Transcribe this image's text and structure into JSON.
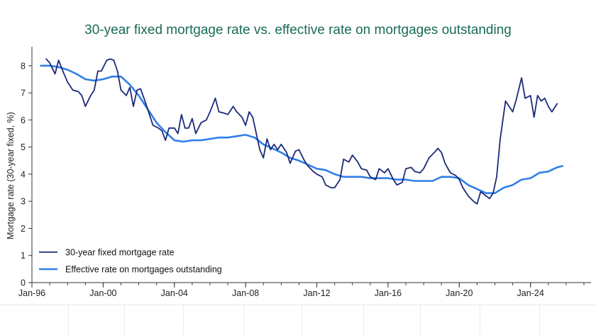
{
  "chart_data": {
    "type": "line",
    "title": "30-year fixed mortgage rate vs. effective rate on mortgages outstanding",
    "ylabel": "Mortgage rate (30-year fixed, %)",
    "xlabel": "",
    "ylim": [
      0,
      8.7
    ],
    "xlim": [
      1996.0,
      2027.4
    ],
    "y_ticks": [
      0,
      1,
      2,
      3,
      4,
      5,
      6,
      7,
      8
    ],
    "x_ticks": [
      {
        "label": "Jan-96",
        "value": 1996
      },
      {
        "label": "Jan-00",
        "value": 2000
      },
      {
        "label": "Jan-04",
        "value": 2004
      },
      {
        "label": "Jan-08",
        "value": 2008
      },
      {
        "label": "Jan-12",
        "value": 2012
      },
      {
        "label": "Jan-16",
        "value": 2016
      },
      {
        "label": "Jan-20",
        "value": 2020
      },
      {
        "label": "Jan-24",
        "value": 2024
      }
    ],
    "grid": false,
    "legend_position": "bottom-left",
    "series": [
      {
        "name": "30-year fixed mortgage rate",
        "color": "#1b2a78",
        "points": [
          [
            1996.8,
            8.25
          ],
          [
            1997.0,
            8.1
          ],
          [
            1997.3,
            7.7
          ],
          [
            1997.5,
            8.2
          ],
          [
            1997.8,
            7.7
          ],
          [
            1998.0,
            7.4
          ],
          [
            1998.3,
            7.1
          ],
          [
            1998.6,
            7.05
          ],
          [
            1998.8,
            6.9
          ],
          [
            1999.0,
            6.5
          ],
          [
            1999.3,
            6.9
          ],
          [
            1999.5,
            7.1
          ],
          [
            1999.7,
            7.8
          ],
          [
            1999.9,
            7.8
          ],
          [
            2000.2,
            8.2
          ],
          [
            2000.4,
            8.25
          ],
          [
            2000.6,
            8.2
          ],
          [
            2000.8,
            7.8
          ],
          [
            2001.0,
            7.1
          ],
          [
            2001.3,
            6.9
          ],
          [
            2001.5,
            7.2
          ],
          [
            2001.7,
            6.5
          ],
          [
            2001.9,
            7.1
          ],
          [
            2002.1,
            7.15
          ],
          [
            2002.4,
            6.6
          ],
          [
            2002.6,
            6.2
          ],
          [
            2002.8,
            5.8
          ],
          [
            2003.1,
            5.7
          ],
          [
            2003.3,
            5.6
          ],
          [
            2003.5,
            5.25
          ],
          [
            2003.7,
            5.7
          ],
          [
            2004.0,
            5.7
          ],
          [
            2004.2,
            5.5
          ],
          [
            2004.4,
            6.2
          ],
          [
            2004.6,
            5.7
          ],
          [
            2004.8,
            5.7
          ],
          [
            2005.0,
            6.05
          ],
          [
            2005.2,
            5.5
          ],
          [
            2005.5,
            5.9
          ],
          [
            2005.8,
            6.0
          ],
          [
            2006.0,
            6.3
          ],
          [
            2006.3,
            6.8
          ],
          [
            2006.5,
            6.3
          ],
          [
            2006.8,
            6.25
          ],
          [
            2007.0,
            6.2
          ],
          [
            2007.3,
            6.5
          ],
          [
            2007.5,
            6.3
          ],
          [
            2007.8,
            6.1
          ],
          [
            2008.0,
            5.8
          ],
          [
            2008.2,
            6.3
          ],
          [
            2008.4,
            6.1
          ],
          [
            2008.6,
            5.5
          ],
          [
            2008.8,
            4.9
          ],
          [
            2009.0,
            4.6
          ],
          [
            2009.2,
            5.3
          ],
          [
            2009.4,
            4.9
          ],
          [
            2009.6,
            5.1
          ],
          [
            2009.8,
            4.9
          ],
          [
            2010.0,
            5.1
          ],
          [
            2010.3,
            4.8
          ],
          [
            2010.5,
            4.4
          ],
          [
            2010.8,
            4.85
          ],
          [
            2011.0,
            4.9
          ],
          [
            2011.3,
            4.5
          ],
          [
            2011.5,
            4.3
          ],
          [
            2011.8,
            4.1
          ],
          [
            2012.0,
            4.0
          ],
          [
            2012.3,
            3.9
          ],
          [
            2012.5,
            3.6
          ],
          [
            2012.8,
            3.5
          ],
          [
            2013.0,
            3.5
          ],
          [
            2013.3,
            3.8
          ],
          [
            2013.5,
            4.55
          ],
          [
            2013.8,
            4.45
          ],
          [
            2014.0,
            4.7
          ],
          [
            2014.3,
            4.45
          ],
          [
            2014.5,
            4.2
          ],
          [
            2014.8,
            4.15
          ],
          [
            2015.0,
            3.9
          ],
          [
            2015.3,
            3.8
          ],
          [
            2015.5,
            4.2
          ],
          [
            2015.8,
            4.05
          ],
          [
            2016.0,
            4.2
          ],
          [
            2016.3,
            3.8
          ],
          [
            2016.5,
            3.6
          ],
          [
            2016.8,
            3.7
          ],
          [
            2017.0,
            4.2
          ],
          [
            2017.3,
            4.25
          ],
          [
            2017.5,
            4.1
          ],
          [
            2017.8,
            4.05
          ],
          [
            2018.0,
            4.2
          ],
          [
            2018.3,
            4.6
          ],
          [
            2018.6,
            4.8
          ],
          [
            2018.8,
            4.95
          ],
          [
            2019.0,
            4.8
          ],
          [
            2019.2,
            4.4
          ],
          [
            2019.5,
            4.05
          ],
          [
            2019.8,
            3.95
          ],
          [
            2020.0,
            3.8
          ],
          [
            2020.2,
            3.5
          ],
          [
            2020.5,
            3.2
          ],
          [
            2020.8,
            3.0
          ],
          [
            2021.0,
            2.9
          ],
          [
            2021.2,
            3.35
          ],
          [
            2021.5,
            3.2
          ],
          [
            2021.7,
            3.1
          ],
          [
            2021.9,
            3.3
          ],
          [
            2022.1,
            3.9
          ],
          [
            2022.3,
            5.3
          ],
          [
            2022.6,
            6.7
          ],
          [
            2022.8,
            6.5
          ],
          [
            2023.0,
            6.3
          ],
          [
            2023.2,
            6.75
          ],
          [
            2023.5,
            7.55
          ],
          [
            2023.7,
            6.8
          ],
          [
            2024.0,
            6.9
          ],
          [
            2024.2,
            6.1
          ],
          [
            2024.4,
            6.9
          ],
          [
            2024.6,
            6.7
          ],
          [
            2024.8,
            6.8
          ],
          [
            2025.0,
            6.5
          ],
          [
            2025.2,
            6.3
          ],
          [
            2025.5,
            6.6
          ]
        ]
      },
      {
        "name": "Effective rate on mortgages outstanding",
        "color": "#2f7fe8",
        "points": [
          [
            1996.5,
            8.0
          ],
          [
            1997.0,
            8.0
          ],
          [
            1997.5,
            7.95
          ],
          [
            1998.0,
            7.85
          ],
          [
            1998.5,
            7.7
          ],
          [
            1999.0,
            7.5
          ],
          [
            1999.5,
            7.45
          ],
          [
            2000.0,
            7.5
          ],
          [
            2000.5,
            7.6
          ],
          [
            2001.0,
            7.6
          ],
          [
            2001.5,
            7.3
          ],
          [
            2002.0,
            6.9
          ],
          [
            2002.5,
            6.4
          ],
          [
            2003.0,
            5.9
          ],
          [
            2003.5,
            5.55
          ],
          [
            2004.0,
            5.25
          ],
          [
            2004.5,
            5.2
          ],
          [
            2005.0,
            5.25
          ],
          [
            2005.5,
            5.25
          ],
          [
            2006.0,
            5.3
          ],
          [
            2006.5,
            5.35
          ],
          [
            2007.0,
            5.35
          ],
          [
            2007.5,
            5.4
          ],
          [
            2008.0,
            5.45
          ],
          [
            2008.5,
            5.35
          ],
          [
            2009.0,
            5.1
          ],
          [
            2009.5,
            4.95
          ],
          [
            2010.0,
            4.8
          ],
          [
            2010.5,
            4.6
          ],
          [
            2011.0,
            4.5
          ],
          [
            2011.5,
            4.35
          ],
          [
            2012.0,
            4.2
          ],
          [
            2012.5,
            4.15
          ],
          [
            2013.0,
            4.0
          ],
          [
            2013.5,
            3.9
          ],
          [
            2014.0,
            3.9
          ],
          [
            2014.5,
            3.9
          ],
          [
            2015.0,
            3.85
          ],
          [
            2015.5,
            3.85
          ],
          [
            2016.0,
            3.85
          ],
          [
            2016.5,
            3.8
          ],
          [
            2017.0,
            3.8
          ],
          [
            2017.5,
            3.75
          ],
          [
            2018.0,
            3.75
          ],
          [
            2018.5,
            3.75
          ],
          [
            2019.0,
            3.9
          ],
          [
            2019.5,
            3.9
          ],
          [
            2020.0,
            3.85
          ],
          [
            2020.5,
            3.6
          ],
          [
            2021.0,
            3.45
          ],
          [
            2021.5,
            3.3
          ],
          [
            2022.0,
            3.3
          ],
          [
            2022.5,
            3.5
          ],
          [
            2023.0,
            3.6
          ],
          [
            2023.5,
            3.8
          ],
          [
            2024.0,
            3.85
          ],
          [
            2024.5,
            4.05
          ],
          [
            2025.0,
            4.1
          ],
          [
            2025.5,
            4.25
          ],
          [
            2025.8,
            4.3
          ]
        ]
      }
    ]
  }
}
